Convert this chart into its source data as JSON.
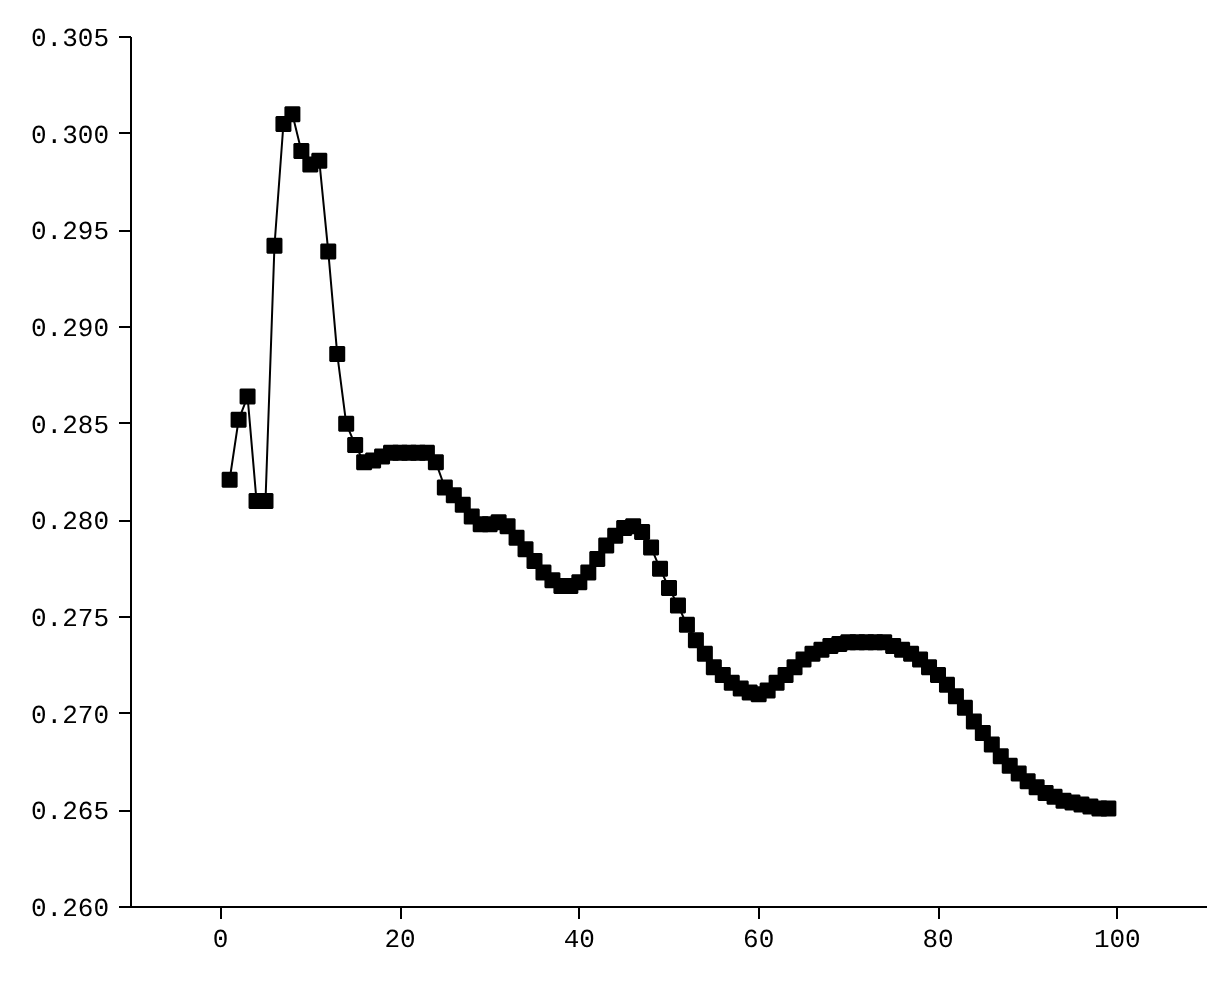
{
  "chart_data": {
    "type": "line",
    "marker": "square",
    "line_style": "solid",
    "grid": false,
    "xlim": [
      -10,
      110
    ],
    "xticks": [
      0,
      20,
      40,
      60,
      80,
      100
    ],
    "ylim": [
      0.26,
      0.305
    ],
    "yticks": [
      {
        "value": 0.26,
        "label": "0.260"
      },
      0.265,
      {
        "value": 0.27,
        "label": "0.270"
      },
      0.275,
      {
        "value": 0.28,
        "label": "0.280"
      },
      0.285,
      {
        "value": 0.29,
        "label": "0.290"
      },
      0.295,
      {
        "value": 0.3,
        "label": "0.300"
      },
      0.305
    ],
    "x": [
      1,
      2,
      3,
      4,
      5,
      6,
      7,
      8,
      9,
      10,
      11,
      12,
      13,
      14,
      15,
      16,
      17,
      18,
      19,
      20,
      21,
      22,
      23,
      24,
      25,
      26,
      27,
      28,
      29,
      30,
      31,
      32,
      33,
      34,
      35,
      36,
      37,
      38,
      39,
      40,
      41,
      42,
      43,
      44,
      45,
      46,
      47,
      48,
      49,
      50,
      51,
      52,
      53,
      54,
      55,
      56,
      57,
      58,
      59,
      60,
      61,
      62,
      63,
      64,
      65,
      66,
      67,
      68,
      69,
      70,
      71,
      72,
      73,
      74,
      75,
      76,
      77,
      78,
      79,
      80,
      81,
      82,
      83,
      84,
      85,
      86,
      87,
      88,
      89,
      90,
      91,
      92,
      93,
      94,
      95,
      96,
      97,
      98,
      99
    ],
    "series": [
      {
        "color": "#000000",
        "values": [
          0.2821,
          0.2852,
          0.2864,
          0.281,
          0.281,
          0.2942,
          0.3005,
          0.301,
          0.2991,
          0.2984,
          0.2986,
          0.2939,
          0.2886,
          0.285,
          0.2839,
          0.283,
          0.2831,
          0.2833,
          0.2835,
          0.2835,
          0.2835,
          0.2835,
          0.2835,
          0.283,
          0.2817,
          0.2813,
          0.2808,
          0.2802,
          0.2798,
          0.2798,
          0.2799,
          0.2797,
          0.2791,
          0.2785,
          0.2779,
          0.2773,
          0.2769,
          0.2766,
          0.2766,
          0.2768,
          0.2773,
          0.278,
          0.2787,
          0.2792,
          0.2796,
          0.2797,
          0.2794,
          0.2786,
          0.2775,
          0.2765,
          0.2756,
          0.2746,
          0.2738,
          0.2731,
          0.2724,
          0.272,
          0.2716,
          0.2713,
          0.2711,
          0.271,
          0.2712,
          0.2716,
          0.272,
          0.2724,
          0.2728,
          0.2731,
          0.2733,
          0.2735,
          0.2736,
          0.2737,
          0.2737,
          0.2737,
          0.2737,
          0.2737,
          0.2735,
          0.2733,
          0.2731,
          0.2728,
          0.2724,
          0.272,
          0.2715,
          0.2709,
          0.2703,
          0.2696,
          0.269,
          0.2684,
          0.2678,
          0.2673,
          0.2669,
          0.2665,
          0.2662,
          0.2659,
          0.2657,
          0.2655,
          0.2654,
          0.2653,
          0.2652,
          0.2651,
          0.2651
        ]
      }
    ]
  }
}
